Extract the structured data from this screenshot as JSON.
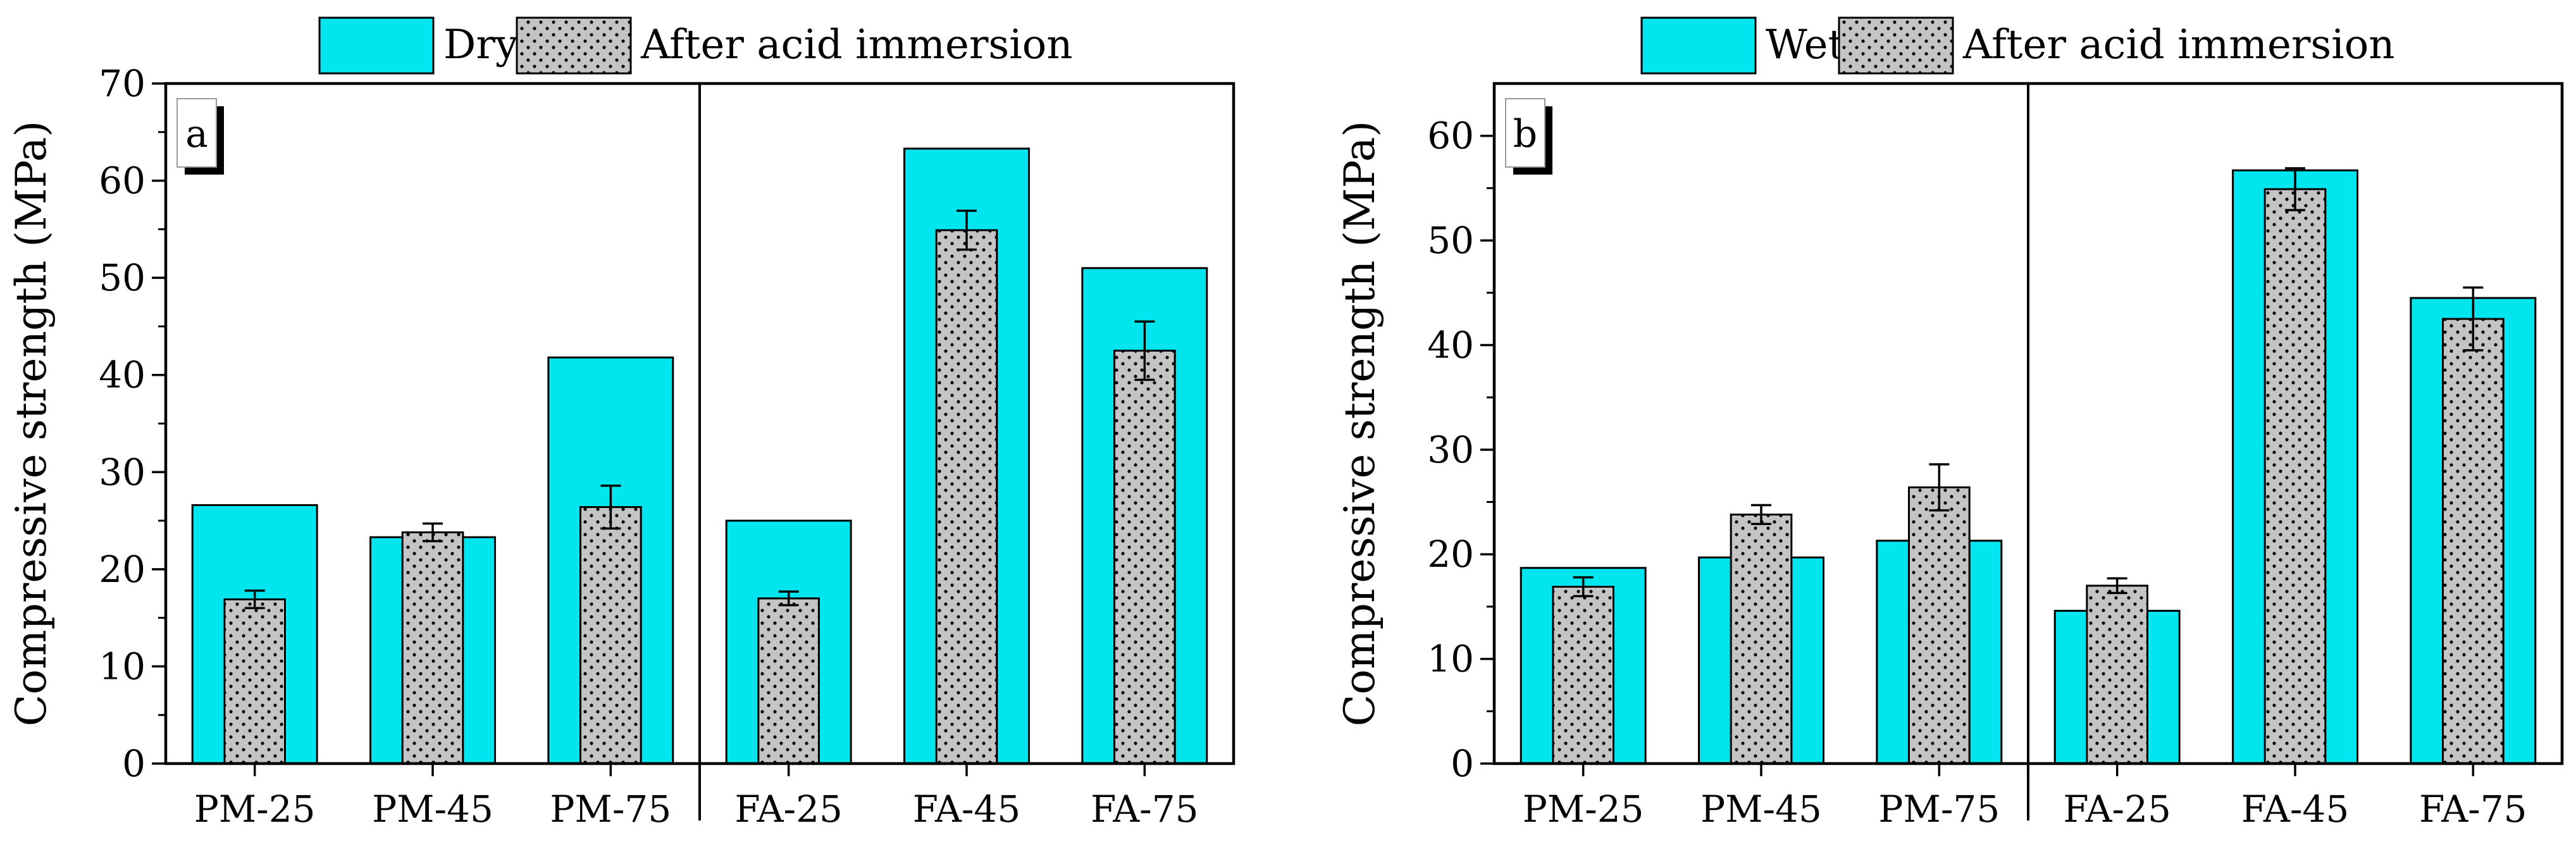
{
  "chart_data": [
    {
      "type": "bar",
      "panel_label": "a",
      "ylabel": "Compressive strength (MPa)",
      "xlabel": "",
      "ylim": [
        0,
        70
      ],
      "yticks": [
        0,
        10,
        20,
        30,
        40,
        50,
        60,
        70
      ],
      "categories": [
        "PM-25",
        "PM-45",
        "PM-75",
        "FA-25",
        "FA-45",
        "FA-75"
      ],
      "series": [
        {
          "name": "Dry",
          "values": [
            26.6,
            23.3,
            41.8,
            25.0,
            63.3,
            51.0
          ],
          "color": "#00e5ee"
        },
        {
          "name": "After acid immersion",
          "values": [
            16.9,
            23.8,
            26.4,
            17.0,
            54.9,
            42.5
          ],
          "errors": [
            0.9,
            0.9,
            2.2,
            0.7,
            2.0,
            3.0
          ],
          "color": "#c0c0c0"
        }
      ],
      "legend": {
        "placement": "top-center",
        "entries": [
          "Dry",
          "After acid immersion"
        ]
      },
      "group_separator_after_index": 2
    },
    {
      "type": "bar",
      "panel_label": "b",
      "ylabel": "Compressive strength (MPa)",
      "xlabel": "",
      "ylim": [
        0,
        65
      ],
      "yticks": [
        0,
        10,
        20,
        30,
        40,
        50,
        60
      ],
      "categories": [
        "PM-25",
        "PM-45",
        "PM-75",
        "FA-25",
        "FA-45",
        "FA-75"
      ],
      "series": [
        {
          "name": "Wet",
          "values": [
            18.7,
            19.7,
            21.3,
            14.6,
            56.7,
            44.5
          ],
          "color": "#00e5ee"
        },
        {
          "name": "After acid immersion",
          "values": [
            16.9,
            23.8,
            26.4,
            17.0,
            54.9,
            42.5
          ],
          "errors": [
            0.9,
            0.9,
            2.2,
            0.7,
            2.0,
            3.0
          ],
          "color": "#c0c0c0"
        }
      ],
      "legend": {
        "placement": "top-center",
        "entries": [
          "Wet",
          "After acid immersion"
        ]
      },
      "group_separator_after_index": 2
    }
  ]
}
